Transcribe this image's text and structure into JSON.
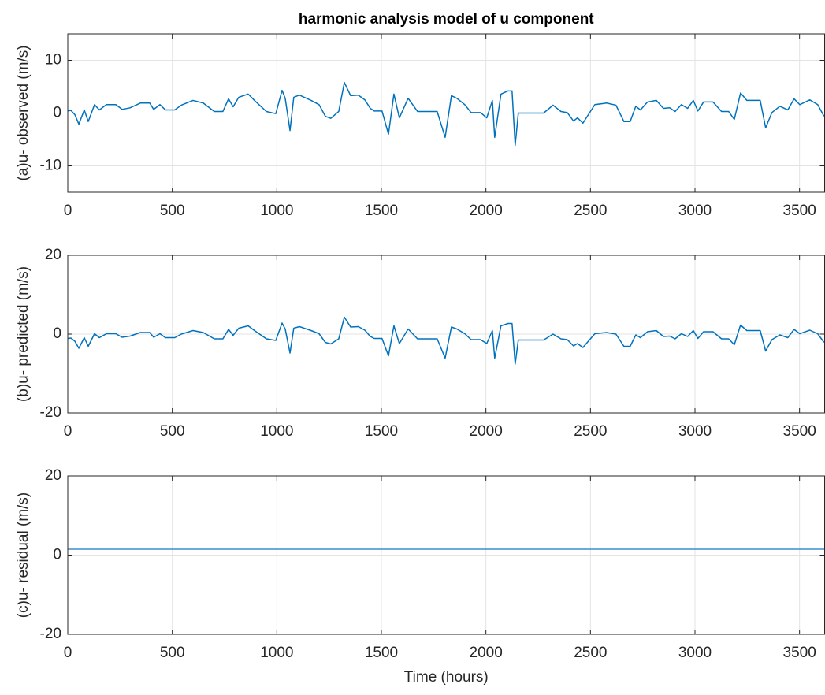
{
  "chart_data": [
    {
      "type": "line",
      "title": "harmonic analysis model of u component",
      "ylabel": "(a)u- observed (m/s)",
      "color": "#0072bd",
      "grid": true,
      "xlim": [
        0,
        3620
      ],
      "xticks": [
        0,
        500,
        1000,
        1500,
        2000,
        2500,
        3000,
        3500
      ],
      "ylim": [
        -15,
        15
      ],
      "yticks": [
        -10,
        0,
        10
      ],
      "x": [
        0,
        15,
        34,
        53,
        79,
        98,
        128,
        151,
        185,
        230,
        260,
        298,
        347,
        392,
        411,
        441,
        467,
        512,
        543,
        599,
        648,
        701,
        742,
        769,
        791,
        818,
        863,
        893,
        950,
        995,
        1025,
        1040,
        1063,
        1081,
        1108,
        1164,
        1202,
        1232,
        1258,
        1296,
        1323,
        1353,
        1390,
        1421,
        1447,
        1466,
        1503,
        1534,
        1560,
        1586,
        1628,
        1673,
        1767,
        1805,
        1835,
        1861,
        1899,
        1929,
        1974,
        2004,
        2031,
        2042,
        2072,
        2106,
        2125,
        2140,
        2155,
        2276,
        2321,
        2359,
        2389,
        2419,
        2438,
        2464,
        2521,
        2577,
        2622,
        2660,
        2690,
        2717,
        2739,
        2773,
        2815,
        2849,
        2879,
        2905,
        2935,
        2965,
        2992,
        3014,
        3041,
        3086,
        3127,
        3161,
        3188,
        3218,
        3248,
        3312,
        3338,
        3368,
        3406,
        3444,
        3474,
        3501,
        3549,
        3587,
        3617
      ],
      "values": [
        0.4,
        0.5,
        -0.3,
        -2.1,
        0.6,
        -1.6,
        1.6,
        0.6,
        1.6,
        1.6,
        0.7,
        1.0,
        1.9,
        1.9,
        0.7,
        1.6,
        0.6,
        0.6,
        1.5,
        2.4,
        1.9,
        0.3,
        0.3,
        2.7,
        1.2,
        3.0,
        3.6,
        2.4,
        0.3,
        -0.1,
        4.3,
        2.8,
        -3.3,
        3.0,
        3.4,
        2.4,
        1.6,
        -0.6,
        -1.0,
        0.3,
        5.8,
        3.3,
        3.4,
        2.5,
        0.9,
        0.4,
        0.4,
        -4.0,
        3.6,
        -0.9,
        2.8,
        0.3,
        0.3,
        -4.6,
        3.3,
        2.8,
        1.6,
        0.1,
        0.1,
        -0.9,
        2.4,
        -4.6,
        3.6,
        4.2,
        4.2,
        -6.1,
        0,
        0,
        1.5,
        0.3,
        0.1,
        -1.5,
        -0.9,
        -1.9,
        1.6,
        1.9,
        1.5,
        -1.6,
        -1.6,
        1.3,
        0.6,
        2.1,
        2.4,
        0.9,
        1.0,
        0.3,
        1.6,
        0.9,
        2.4,
        0.4,
        2.1,
        2.1,
        0.3,
        0.3,
        -1.2,
        3.8,
        2.4,
        2.4,
        -2.8,
        0.1,
        1.3,
        0.6,
        2.7,
        1.6,
        2.5,
        1.6,
        -0.6
      ]
    },
    {
      "type": "line",
      "ylabel": "(b)u- predicted (m/s)",
      "color": "#0072bd",
      "grid": true,
      "xlim": [
        0,
        3620
      ],
      "xticks": [
        0,
        500,
        1000,
        1500,
        2000,
        2500,
        3000,
        3500
      ],
      "ylim": [
        -20,
        20
      ],
      "yticks": [
        -20,
        0,
        20
      ],
      "x": [
        0,
        15,
        34,
        53,
        79,
        98,
        128,
        151,
        185,
        230,
        260,
        298,
        347,
        392,
        411,
        441,
        467,
        512,
        543,
        599,
        648,
        701,
        742,
        769,
        791,
        818,
        863,
        893,
        950,
        995,
        1025,
        1040,
        1063,
        1081,
        1108,
        1164,
        1202,
        1232,
        1258,
        1296,
        1323,
        1353,
        1390,
        1421,
        1447,
        1466,
        1503,
        1534,
        1560,
        1586,
        1628,
        1673,
        1767,
        1805,
        1835,
        1861,
        1899,
        1929,
        1974,
        2004,
        2031,
        2042,
        2072,
        2106,
        2125,
        2140,
        2155,
        2276,
        2321,
        2359,
        2389,
        2419,
        2438,
        2464,
        2521,
        2577,
        2622,
        2660,
        2690,
        2717,
        2739,
        2773,
        2815,
        2849,
        2879,
        2905,
        2935,
        2965,
        2992,
        3014,
        3041,
        3086,
        3127,
        3161,
        3188,
        3218,
        3248,
        3312,
        3338,
        3368,
        3406,
        3444,
        3474,
        3501,
        3549,
        3587,
        3617
      ],
      "values": [
        -1.1,
        -1.0,
        -1.8,
        -3.6,
        -0.9,
        -3.1,
        0.1,
        -0.9,
        0.1,
        0.1,
        -0.8,
        -0.5,
        0.4,
        0.4,
        -0.8,
        0.1,
        -0.9,
        -0.9,
        0,
        0.9,
        0.4,
        -1.2,
        -1.2,
        1.2,
        -0.3,
        1.5,
        2.1,
        0.9,
        -1.2,
        -1.6,
        2.8,
        1.3,
        -4.8,
        1.5,
        1.9,
        0.9,
        0.1,
        -2.1,
        -2.5,
        -1.2,
        4.3,
        1.8,
        1.9,
        1.0,
        -0.6,
        -1.1,
        -1.1,
        -5.5,
        2.1,
        -2.4,
        1.3,
        -1.2,
        -1.2,
        -6.1,
        1.8,
        1.3,
        0.1,
        -1.4,
        -1.4,
        -2.4,
        0.9,
        -6.1,
        2.1,
        2.7,
        2.7,
        -7.6,
        -1.5,
        -1.5,
        0,
        -1.2,
        -1.4,
        -3.0,
        -2.4,
        -3.4,
        0.1,
        0.4,
        0,
        -3.1,
        -3.1,
        -0.2,
        -0.9,
        0.6,
        0.9,
        -0.6,
        -0.5,
        -1.2,
        0.1,
        -0.6,
        0.9,
        -1.1,
        0.6,
        0.6,
        -1.2,
        -1.2,
        -2.7,
        2.3,
        0.9,
        0.9,
        -4.3,
        -1.4,
        -0.2,
        -0.9,
        1.2,
        0.1,
        1.0,
        0.1,
        -2.1
      ]
    },
    {
      "type": "line",
      "ylabel": "(c)u- residual (m/s)",
      "xlabel": "Time (hours)",
      "color": "#3a8fd0",
      "grid": true,
      "xlim": [
        0,
        3620
      ],
      "xticks": [
        0,
        500,
        1000,
        1500,
        2000,
        2500,
        3000,
        3500
      ],
      "ylim": [
        -20,
        20
      ],
      "yticks": [
        -20,
        0,
        20
      ],
      "x": [
        0,
        3620
      ],
      "values": [
        1.5,
        1.5
      ]
    }
  ]
}
